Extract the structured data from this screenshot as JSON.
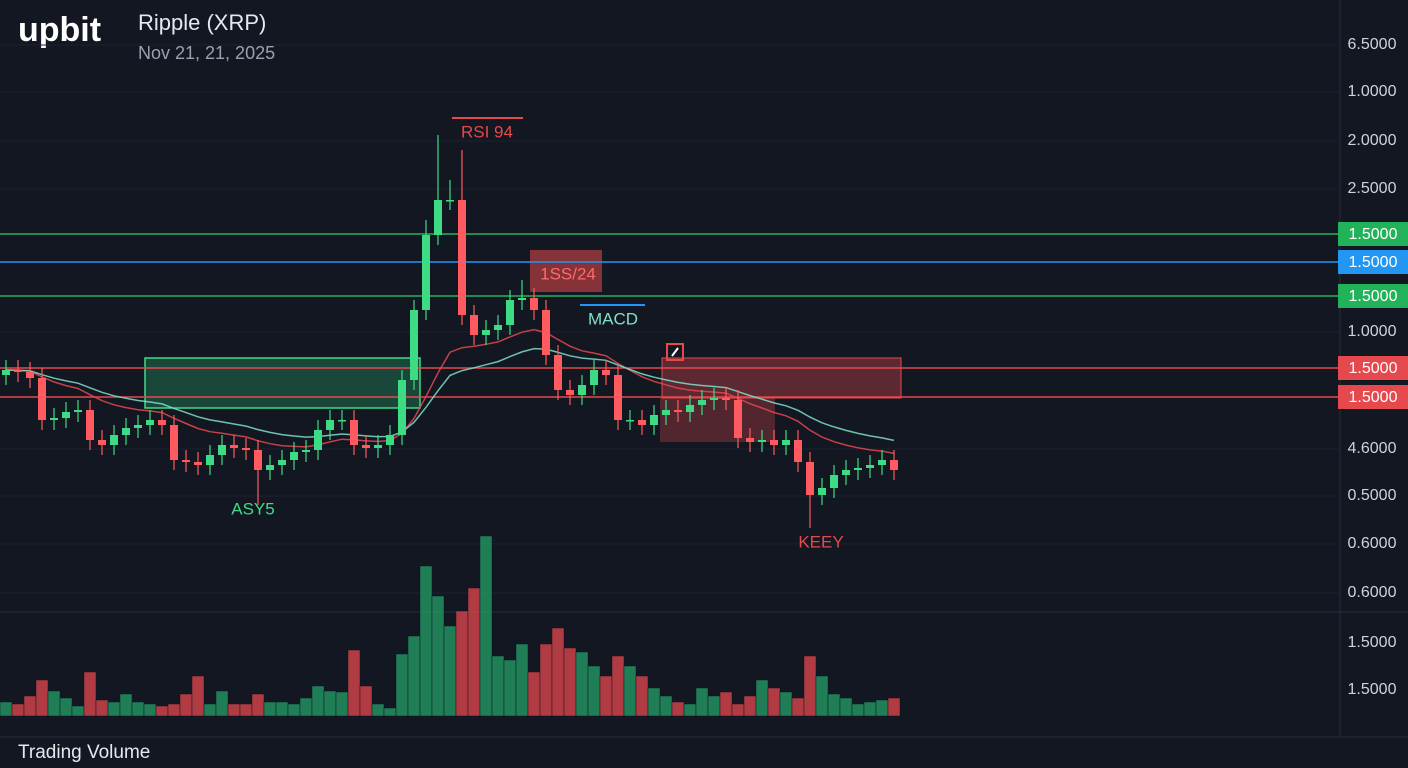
{
  "header": {
    "logo": "upbit",
    "title": "Ripple (XRP)",
    "date": "Nov 21, 21, 2025"
  },
  "price_axis": [
    "6.5000",
    "1.0000",
    "2.0000",
    "2.5000",
    "1.0000",
    "4.6000",
    "0.5000",
    "0.6000",
    "0.6000"
  ],
  "volume_axis": [
    "1.5000",
    "1.5000"
  ],
  "level_tags": [
    {
      "label": "1.5000",
      "color": "#22b35a"
    },
    {
      "label": "1.5000",
      "color": "#2196f3"
    },
    {
      "label": "1.5000",
      "color": "#22b35a"
    },
    {
      "label": "1.5000",
      "color": "#e5484d"
    },
    {
      "label": "1.5000",
      "color": "#e5484d"
    }
  ],
  "annotations": {
    "rsi": "RSI 94",
    "ss": "1SS/24",
    "macd": "MACD",
    "asy": "ASY5",
    "keey": "KEEY"
  },
  "footer": "Trading Volume",
  "candles": {
    "open": [
      22.5,
      23,
      22.8,
      22.2,
      18,
      18.2,
      18.8,
      19,
      16,
      15.5,
      16.5,
      17.2,
      17.5,
      18,
      17.5,
      14,
      13.8,
      13.5,
      14.5,
      15.5,
      15.2,
      15,
      13,
      13.5,
      14,
      14.8,
      15,
      17,
      18,
      18,
      15.5,
      15.2,
      15.5,
      16.5,
      22,
      29,
      36.5,
      40,
      40,
      28.5,
      26.5,
      27,
      27.5,
      30,
      30.2,
      29,
      24.5,
      21,
      20.5,
      21.5,
      23,
      22.5,
      18,
      18,
      17.5,
      18.5,
      19,
      18.8,
      19.5,
      20,
      20.2,
      20,
      16.2,
      15.8,
      16,
      15.5,
      16,
      13.8,
      10.5,
      11.2,
      12.5,
      13,
      13.2,
      13.5,
      14
    ],
    "high": [
      24,
      24,
      23.8,
      23.2,
      19.2,
      19.8,
      20,
      20,
      17,
      17.5,
      18.2,
      18.5,
      19,
      19,
      18.5,
      15,
      14.8,
      15.5,
      16.5,
      16.5,
      16.2,
      16,
      14.5,
      15,
      15.8,
      16,
      18,
      19,
      19,
      19,
      16.5,
      16.5,
      17.5,
      23,
      30,
      38,
      46.5,
      42,
      45,
      29.5,
      28,
      28.5,
      31,
      32,
      31.2,
      30,
      25.5,
      22,
      22.5,
      24,
      24,
      23.5,
      19,
      19,
      19.5,
      20,
      20,
      20.5,
      21,
      21.2,
      21.2,
      21,
      17.2,
      17,
      17,
      17,
      17,
      14.8,
      12.2,
      13.5,
      14,
      14.2,
      14.5,
      15,
      15
    ],
    "low": [
      21.5,
      21.8,
      21.2,
      17,
      17,
      17.2,
      17.8,
      15,
      14.5,
      14.5,
      15.5,
      16.2,
      16.5,
      16.5,
      13,
      12.8,
      12.5,
      12.5,
      13.5,
      14.2,
      14,
      9.5,
      12,
      12.5,
      13,
      13.8,
      14,
      16,
      17,
      14.5,
      14.2,
      14.2,
      14.5,
      15.5,
      21,
      28,
      35.5,
      39,
      27.5,
      25.5,
      25.5,
      26,
      26.5,
      29,
      28,
      23.5,
      20,
      19.5,
      19.5,
      20.5,
      21.5,
      17,
      17,
      16.5,
      16.5,
      17.5,
      17.8,
      17.8,
      18.5,
      19,
      19,
      15.2,
      14.8,
      14.8,
      14.5,
      14.5,
      12.8,
      7.2,
      9.5,
      10.2,
      11.5,
      12,
      12.2,
      12.5,
      12
    ],
    "close": [
      23,
      22.8,
      22.2,
      18,
      18.2,
      18.8,
      19,
      16,
      15.5,
      16.5,
      17.2,
      17.5,
      18,
      17.5,
      14,
      13.8,
      13.5,
      14.5,
      15.5,
      15.2,
      15,
      13,
      13.5,
      14,
      14.8,
      15,
      17,
      18,
      18,
      15.5,
      15.2,
      15.5,
      16.5,
      22,
      29,
      36.5,
      40,
      40,
      28.5,
      26.5,
      27,
      27.5,
      30,
      30.2,
      29,
      24.5,
      21,
      20.5,
      21.5,
      23,
      22.5,
      18,
      18,
      17.5,
      18.5,
      19,
      18.8,
      19.5,
      20,
      20.2,
      20,
      16.2,
      15.8,
      16,
      15.5,
      16,
      13.8,
      10.5,
      11.2,
      12.5,
      13,
      13.2,
      13.5,
      14,
      13
    ],
    "volume": [
      14,
      12,
      20,
      36,
      25,
      18,
      10,
      44,
      16,
      14,
      22,
      14,
      12,
      10,
      12,
      22,
      40,
      12,
      25,
      12,
      12,
      22,
      14,
      14,
      12,
      18,
      30,
      25,
      24,
      66,
      30,
      12,
      8,
      62,
      80,
      150,
      120,
      90,
      105,
      128,
      180,
      60,
      56,
      72,
      44,
      72,
      88,
      68,
      64,
      50,
      40,
      60,
      50,
      40,
      28,
      20,
      14,
      12,
      28,
      20,
      24,
      12,
      20,
      36,
      28,
      24,
      18,
      60,
      40,
      22,
      18,
      12,
      14,
      16,
      18
    ],
    "up_color": "#26a269",
    "down_color": "#e5484d"
  }
}
